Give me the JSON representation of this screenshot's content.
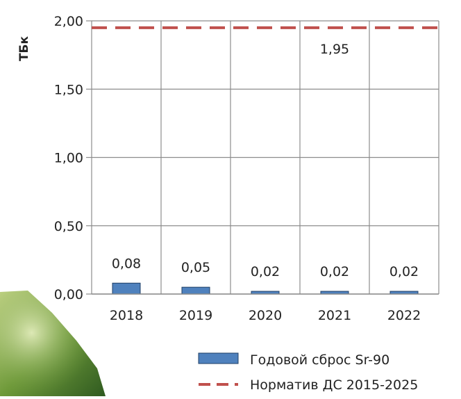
{
  "chart_data": {
    "type": "bar",
    "title": "",
    "xlabel": "",
    "ylabel": "ТБк",
    "categories": [
      "2018",
      "2019",
      "2020",
      "2021",
      "2022"
    ],
    "series": [
      {
        "name": "Годовой сброс  Sr-90",
        "type": "bar",
        "color": "#4f81bd",
        "values": [
          0.08,
          0.05,
          0.02,
          0.02,
          0.02
        ],
        "labels": [
          "0,08",
          "0,05",
          "0,02",
          "0,02",
          "0,02"
        ]
      },
      {
        "name": "Норматив ДС 2015-2025",
        "type": "line",
        "style": "dashed",
        "color": "#c0504d",
        "value": 1.95,
        "label": "1,95"
      }
    ],
    "ylim": [
      0,
      2.0
    ],
    "yticks": [
      0,
      0.5,
      1.0,
      1.5,
      2.0
    ],
    "ytick_labels": [
      "0,00",
      "0,50",
      "1,00",
      "1,50",
      "2,00"
    ],
    "grid": true,
    "legend": "bottom-right"
  }
}
